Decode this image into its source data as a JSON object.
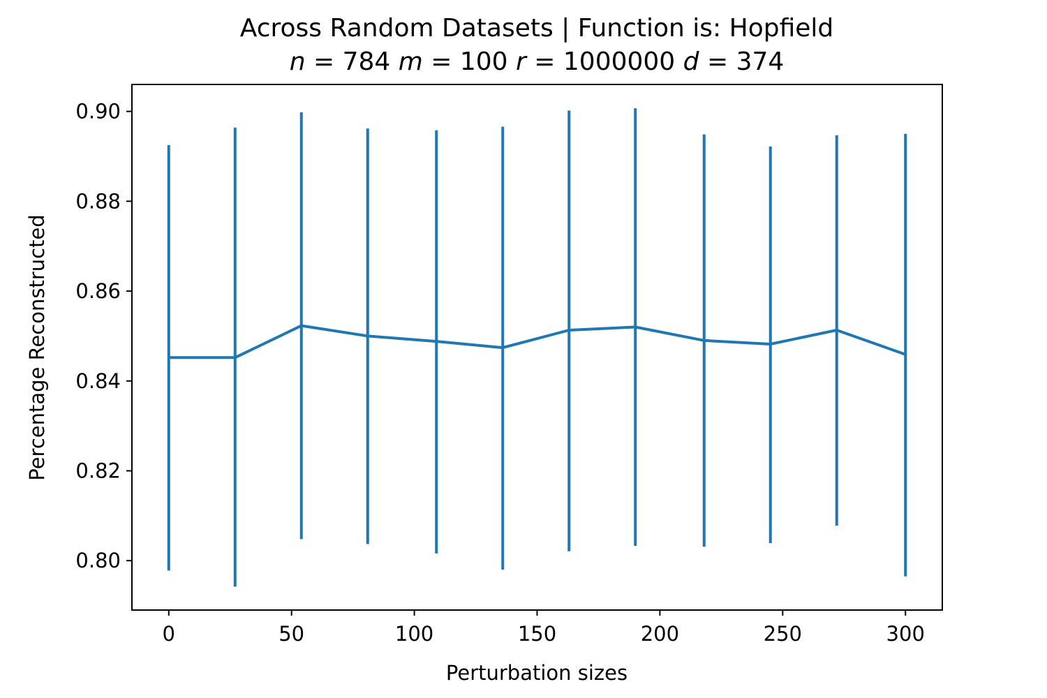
{
  "chart_data": {
    "type": "line",
    "title": "Across Random Datasets | Function is: Hopfield",
    "subtitle_parts": [
      {
        "var": "n",
        "value": "784"
      },
      {
        "var": "m",
        "value": "100"
      },
      {
        "var": "r",
        "value": "1000000"
      },
      {
        "var": "d",
        "value": "374"
      }
    ],
    "xlabel": "Perturbation sizes",
    "ylabel": "Percentage Reconstructed",
    "xlim": [
      -15,
      315
    ],
    "ylim": [
      0.789,
      0.906
    ],
    "xticks": [
      0,
      50,
      100,
      150,
      200,
      250,
      300
    ],
    "xtick_labels": [
      "0",
      "50",
      "100",
      "150",
      "200",
      "250",
      "300"
    ],
    "yticks": [
      0.8,
      0.82,
      0.84,
      0.86,
      0.88,
      0.9
    ],
    "ytick_labels": [
      "0.80",
      "0.82",
      "0.84",
      "0.86",
      "0.88",
      "0.90"
    ],
    "grid": false,
    "series": [
      {
        "color": "#1f77b4",
        "x": [
          0,
          27,
          54,
          81,
          109,
          136,
          163,
          190,
          218,
          245,
          272,
          300
        ],
        "y": [
          0.8452,
          0.8452,
          0.8523,
          0.85,
          0.8488,
          0.8474,
          0.8513,
          0.852,
          0.849,
          0.8482,
          0.8513,
          0.8459
        ],
        "err_low": [
          0.7978,
          0.7942,
          0.8048,
          0.8037,
          0.8016,
          0.798,
          0.8021,
          0.8033,
          0.8031,
          0.8039,
          0.8078,
          0.7965
        ],
        "err_high": [
          0.8925,
          0.8964,
          0.8998,
          0.8962,
          0.8958,
          0.8966,
          0.9002,
          0.9007,
          0.8949,
          0.8922,
          0.8947,
          0.895
        ]
      }
    ]
  }
}
